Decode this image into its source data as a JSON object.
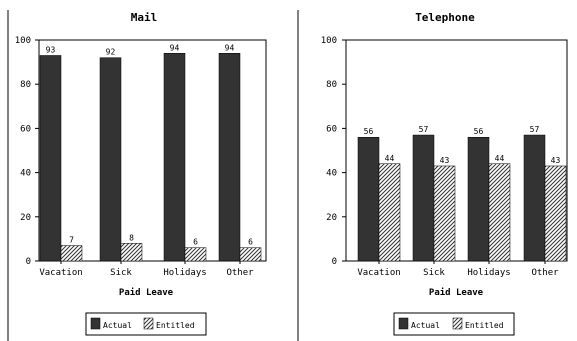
{
  "chart_data": [
    {
      "type": "bar",
      "title": "Mail",
      "xlabel": "Paid Leave",
      "ylabel": "",
      "ylim": [
        0,
        100
      ],
      "yticks": [
        0,
        20,
        40,
        60,
        80,
        100
      ],
      "categories": [
        "Vacation",
        "Sick",
        "Holidays",
        "Other"
      ],
      "series": [
        {
          "name": "Actual",
          "values": [
            93,
            92,
            94,
            94
          ],
          "color": "#333333",
          "pattern": "solid"
        },
        {
          "name": "Entitled",
          "values": [
            7,
            8,
            6,
            6
          ],
          "color": "#555555",
          "pattern": "diagonal-hatch"
        }
      ],
      "legend": "bottom-center",
      "grid": false
    },
    {
      "type": "bar",
      "title": "Telephone",
      "xlabel": "Paid Leave",
      "ylabel": "",
      "ylim": [
        0,
        100
      ],
      "yticks": [
        0,
        20,
        40,
        60,
        80,
        100
      ],
      "categories": [
        "Vacation",
        "Sick",
        "Holidays",
        "Other"
      ],
      "series": [
        {
          "name": "Actual",
          "values": [
            56,
            57,
            56,
            57
          ],
          "color": "#333333",
          "pattern": "solid"
        },
        {
          "name": "Entitled",
          "values": [
            44,
            43,
            44,
            43
          ],
          "color": "#555555",
          "pattern": "diagonal-hatch"
        }
      ],
      "legend": "bottom-center",
      "grid": false
    }
  ]
}
